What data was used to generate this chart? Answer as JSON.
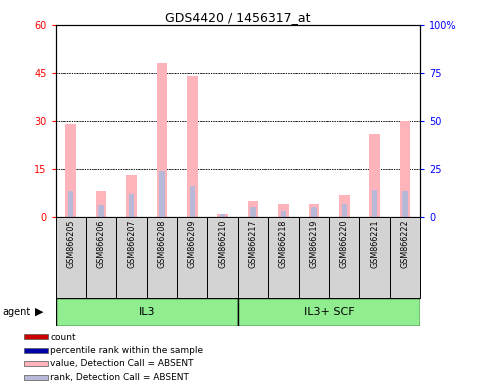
{
  "title": "GDS4420 / 1456317_at",
  "samples": [
    "GSM866205",
    "GSM866206",
    "GSM866207",
    "GSM866208",
    "GSM866209",
    "GSM866210",
    "GSM866217",
    "GSM866218",
    "GSM866219",
    "GSM866220",
    "GSM866221",
    "GSM866222"
  ],
  "values_absent": [
    29,
    8,
    13,
    48,
    44,
    1,
    5,
    4,
    4,
    7,
    26,
    30
  ],
  "rank_absent": [
    13.5,
    6,
    12,
    24,
    16,
    1.5,
    5,
    3,
    5,
    7,
    14,
    13.5
  ],
  "group1_label": "IL3",
  "group2_label": "IL3+ SCF",
  "group1_count": 6,
  "group2_count": 6,
  "ylim_left": [
    0,
    60
  ],
  "ylim_right": [
    0,
    100
  ],
  "yticks_left": [
    0,
    15,
    30,
    45,
    60
  ],
  "ytick_labels_left": [
    "0",
    "15",
    "30",
    "45",
    "60"
  ],
  "yticks_right": [
    0,
    25,
    50,
    75,
    100
  ],
  "ytick_labels_right": [
    "0",
    "25",
    "50",
    "75",
    "100%"
  ],
  "color_value_absent": "#FFB3BA",
  "color_rank_absent": "#B8B8D8",
  "color_count": "#CC0000",
  "color_rank": "#0000AA",
  "agent_label": "agent",
  "group_bg_color": "#90EE90",
  "bar_bg_color": "#D3D3D3",
  "pink_bar_width": 0.35,
  "purple_bar_width": 0.18
}
